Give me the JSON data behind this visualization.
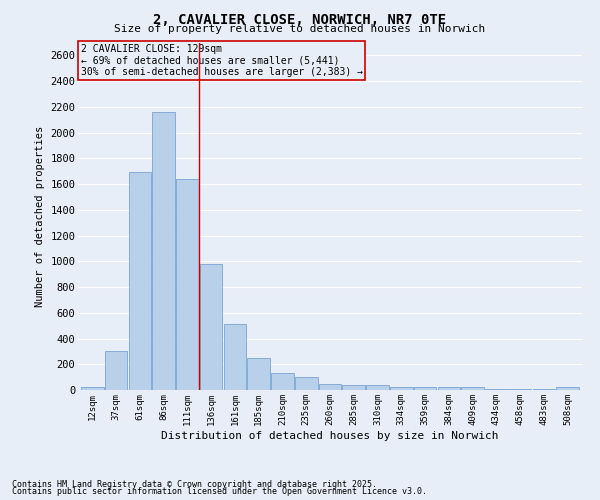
{
  "title": "2, CAVALIER CLOSE, NORWICH, NR7 0TE",
  "subtitle": "Size of property relative to detached houses in Norwich",
  "xlabel": "Distribution of detached houses by size in Norwich",
  "ylabel": "Number of detached properties",
  "footnote1": "Contains HM Land Registry data © Crown copyright and database right 2025.",
  "footnote2": "Contains public sector information licensed under the Open Government Licence v3.0.",
  "categories": [
    "12sqm",
    "37sqm",
    "61sqm",
    "86sqm",
    "111sqm",
    "136sqm",
    "161sqm",
    "185sqm",
    "210sqm",
    "235sqm",
    "260sqm",
    "285sqm",
    "310sqm",
    "334sqm",
    "359sqm",
    "384sqm",
    "409sqm",
    "434sqm",
    "458sqm",
    "483sqm",
    "508sqm"
  ],
  "values": [
    20,
    300,
    1690,
    2160,
    1640,
    980,
    510,
    245,
    135,
    100,
    50,
    40,
    35,
    20,
    20,
    20,
    20,
    10,
    10,
    10,
    20
  ],
  "bar_color": "#b8d0ea",
  "bar_edge_color": "#6699cc",
  "bg_color": "#e8eef8",
  "grid_color": "#ffffff",
  "annotation_box_text": [
    "2 CAVALIER CLOSE: 129sqm",
    "← 69% of detached houses are smaller (5,441)",
    "30% of semi-detached houses are larger (2,383) →"
  ],
  "annotation_box_color": "#cc0000",
  "vline_x_index": 4.5,
  "vline_color": "#cc0000",
  "ylim": [
    0,
    2700
  ],
  "yticks": [
    0,
    200,
    400,
    600,
    800,
    1000,
    1200,
    1400,
    1600,
    1800,
    2000,
    2200,
    2400,
    2600
  ]
}
